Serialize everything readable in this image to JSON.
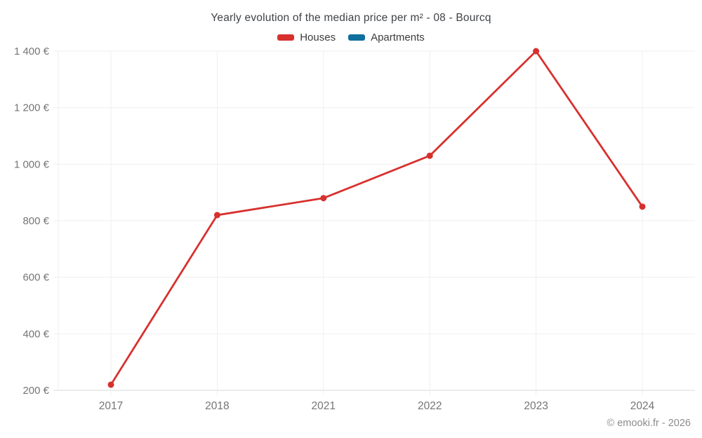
{
  "header": {
    "title": "Yearly evolution of the median price per m² - 08 - Bourcq"
  },
  "legend": [
    {
      "label": "Houses",
      "color": "#d7312e"
    },
    {
      "label": "Apartments",
      "color": "#0f6f9d"
    }
  ],
  "footer": {
    "credit": "© emooki.fr - 2026"
  },
  "chart_data": {
    "type": "line",
    "title": "Yearly evolution of the median price per m² - 08 - Bourcq",
    "categories": [
      "2017",
      "2018",
      "2021",
      "2022",
      "2023",
      "2024"
    ],
    "series": [
      {
        "name": "Houses",
        "color": "#d7312e",
        "values": [
          220,
          820,
          880,
          1030,
          1400,
          850
        ]
      },
      {
        "name": "Apartments",
        "color": "#0f6f9d",
        "values": []
      }
    ],
    "y_ticks": [
      200,
      400,
      600,
      800,
      1000,
      1200,
      1400
    ],
    "y_tick_labels": [
      "200 €",
      "400 €",
      "600 €",
      "800 €",
      "1 000 €",
      "1 200 €",
      "1 400 €"
    ],
    "ylim": [
      200,
      1400
    ],
    "xlabel": "",
    "ylabel": "",
    "grid": true,
    "legend_position": "top-center",
    "colors": {
      "grid": "#efefef",
      "axis": "#d9d9d9",
      "tick_text": "#757575"
    }
  }
}
